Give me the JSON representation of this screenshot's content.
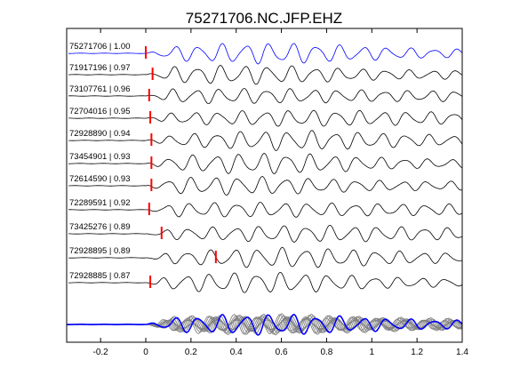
{
  "chart_data": {
    "type": "line",
    "title": "75271706.NC.JFP.EHZ",
    "xlabel": "",
    "ylabel": "",
    "xlim": [
      -0.35,
      1.4
    ],
    "xticks": [
      -0.2,
      0,
      0.2,
      0.4,
      0.6,
      0.8,
      1,
      1.2,
      1.4
    ],
    "xtick_labels": [
      "-0.2",
      "0",
      "0.2",
      "0.4",
      "0.6",
      "0.8",
      "1",
      "1.2",
      "1.4"
    ],
    "grid": false,
    "colors": {
      "reference": "#0000ff",
      "trace": "#000000",
      "pick": "#ff0000",
      "stack": "#808080"
    },
    "traces": [
      {
        "label": "75271706 | 1.00",
        "pick_time": 0.0,
        "reference": true
      },
      {
        "label": "71917196 | 0.97",
        "pick_time": 0.03
      },
      {
        "label": "73107761 | 0.96",
        "pick_time": 0.015
      },
      {
        "label": "72704016 | 0.95",
        "pick_time": 0.02
      },
      {
        "label": "72928890 | 0.94",
        "pick_time": 0.025
      },
      {
        "label": "73454901 | 0.93",
        "pick_time": 0.025
      },
      {
        "label": "72614590 | 0.93",
        "pick_time": 0.025
      },
      {
        "label": "72289591 | 0.92",
        "pick_time": 0.015
      },
      {
        "label": "73425276 | 0.89",
        "pick_time": 0.07
      },
      {
        "label": "72928895 | 0.89",
        "pick_time": 0.31
      },
      {
        "label": "72928885 | 0.87",
        "pick_time": 0.02
      }
    ],
    "stack": {
      "reference_overlay": true
    }
  }
}
